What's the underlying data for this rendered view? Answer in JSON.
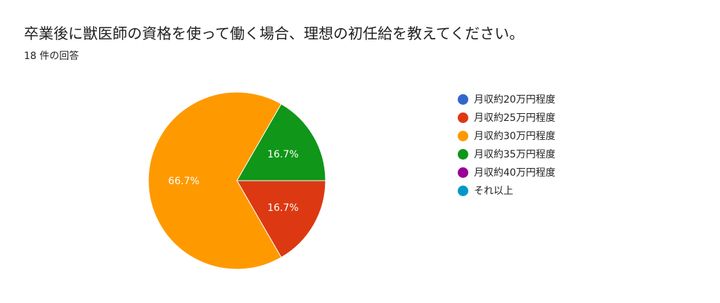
{
  "form": {
    "question": "卒業後に獣医師の資格を使って働く場合、理想の初任給を教えてください。",
    "response_count": "18 件の回答"
  },
  "chart_data": {
    "type": "pie",
    "title": "卒業後に獣医師の資格を使って働く場合、理想の初任給を教えてください。",
    "total_responses": 18,
    "legend_position": "right",
    "slices": [
      {
        "label": "月収約20万円程度",
        "value": 0,
        "percent_label": "",
        "color": "#3366cc"
      },
      {
        "label": "月収約25万円程度",
        "value": 3,
        "percent_label": "16.7%",
        "color": "#dc3912"
      },
      {
        "label": "月収約30万円程度",
        "value": 12,
        "percent_label": "66.7%",
        "color": "#ff9900"
      },
      {
        "label": "月収約35万円程度",
        "value": 3,
        "percent_label": "16.7%",
        "color": "#109618"
      },
      {
        "label": "月収約40万円程度",
        "value": 0,
        "percent_label": "",
        "color": "#990099"
      },
      {
        "label": "それ以上",
        "value": 0,
        "percent_label": "",
        "color": "#0099c6"
      }
    ]
  }
}
